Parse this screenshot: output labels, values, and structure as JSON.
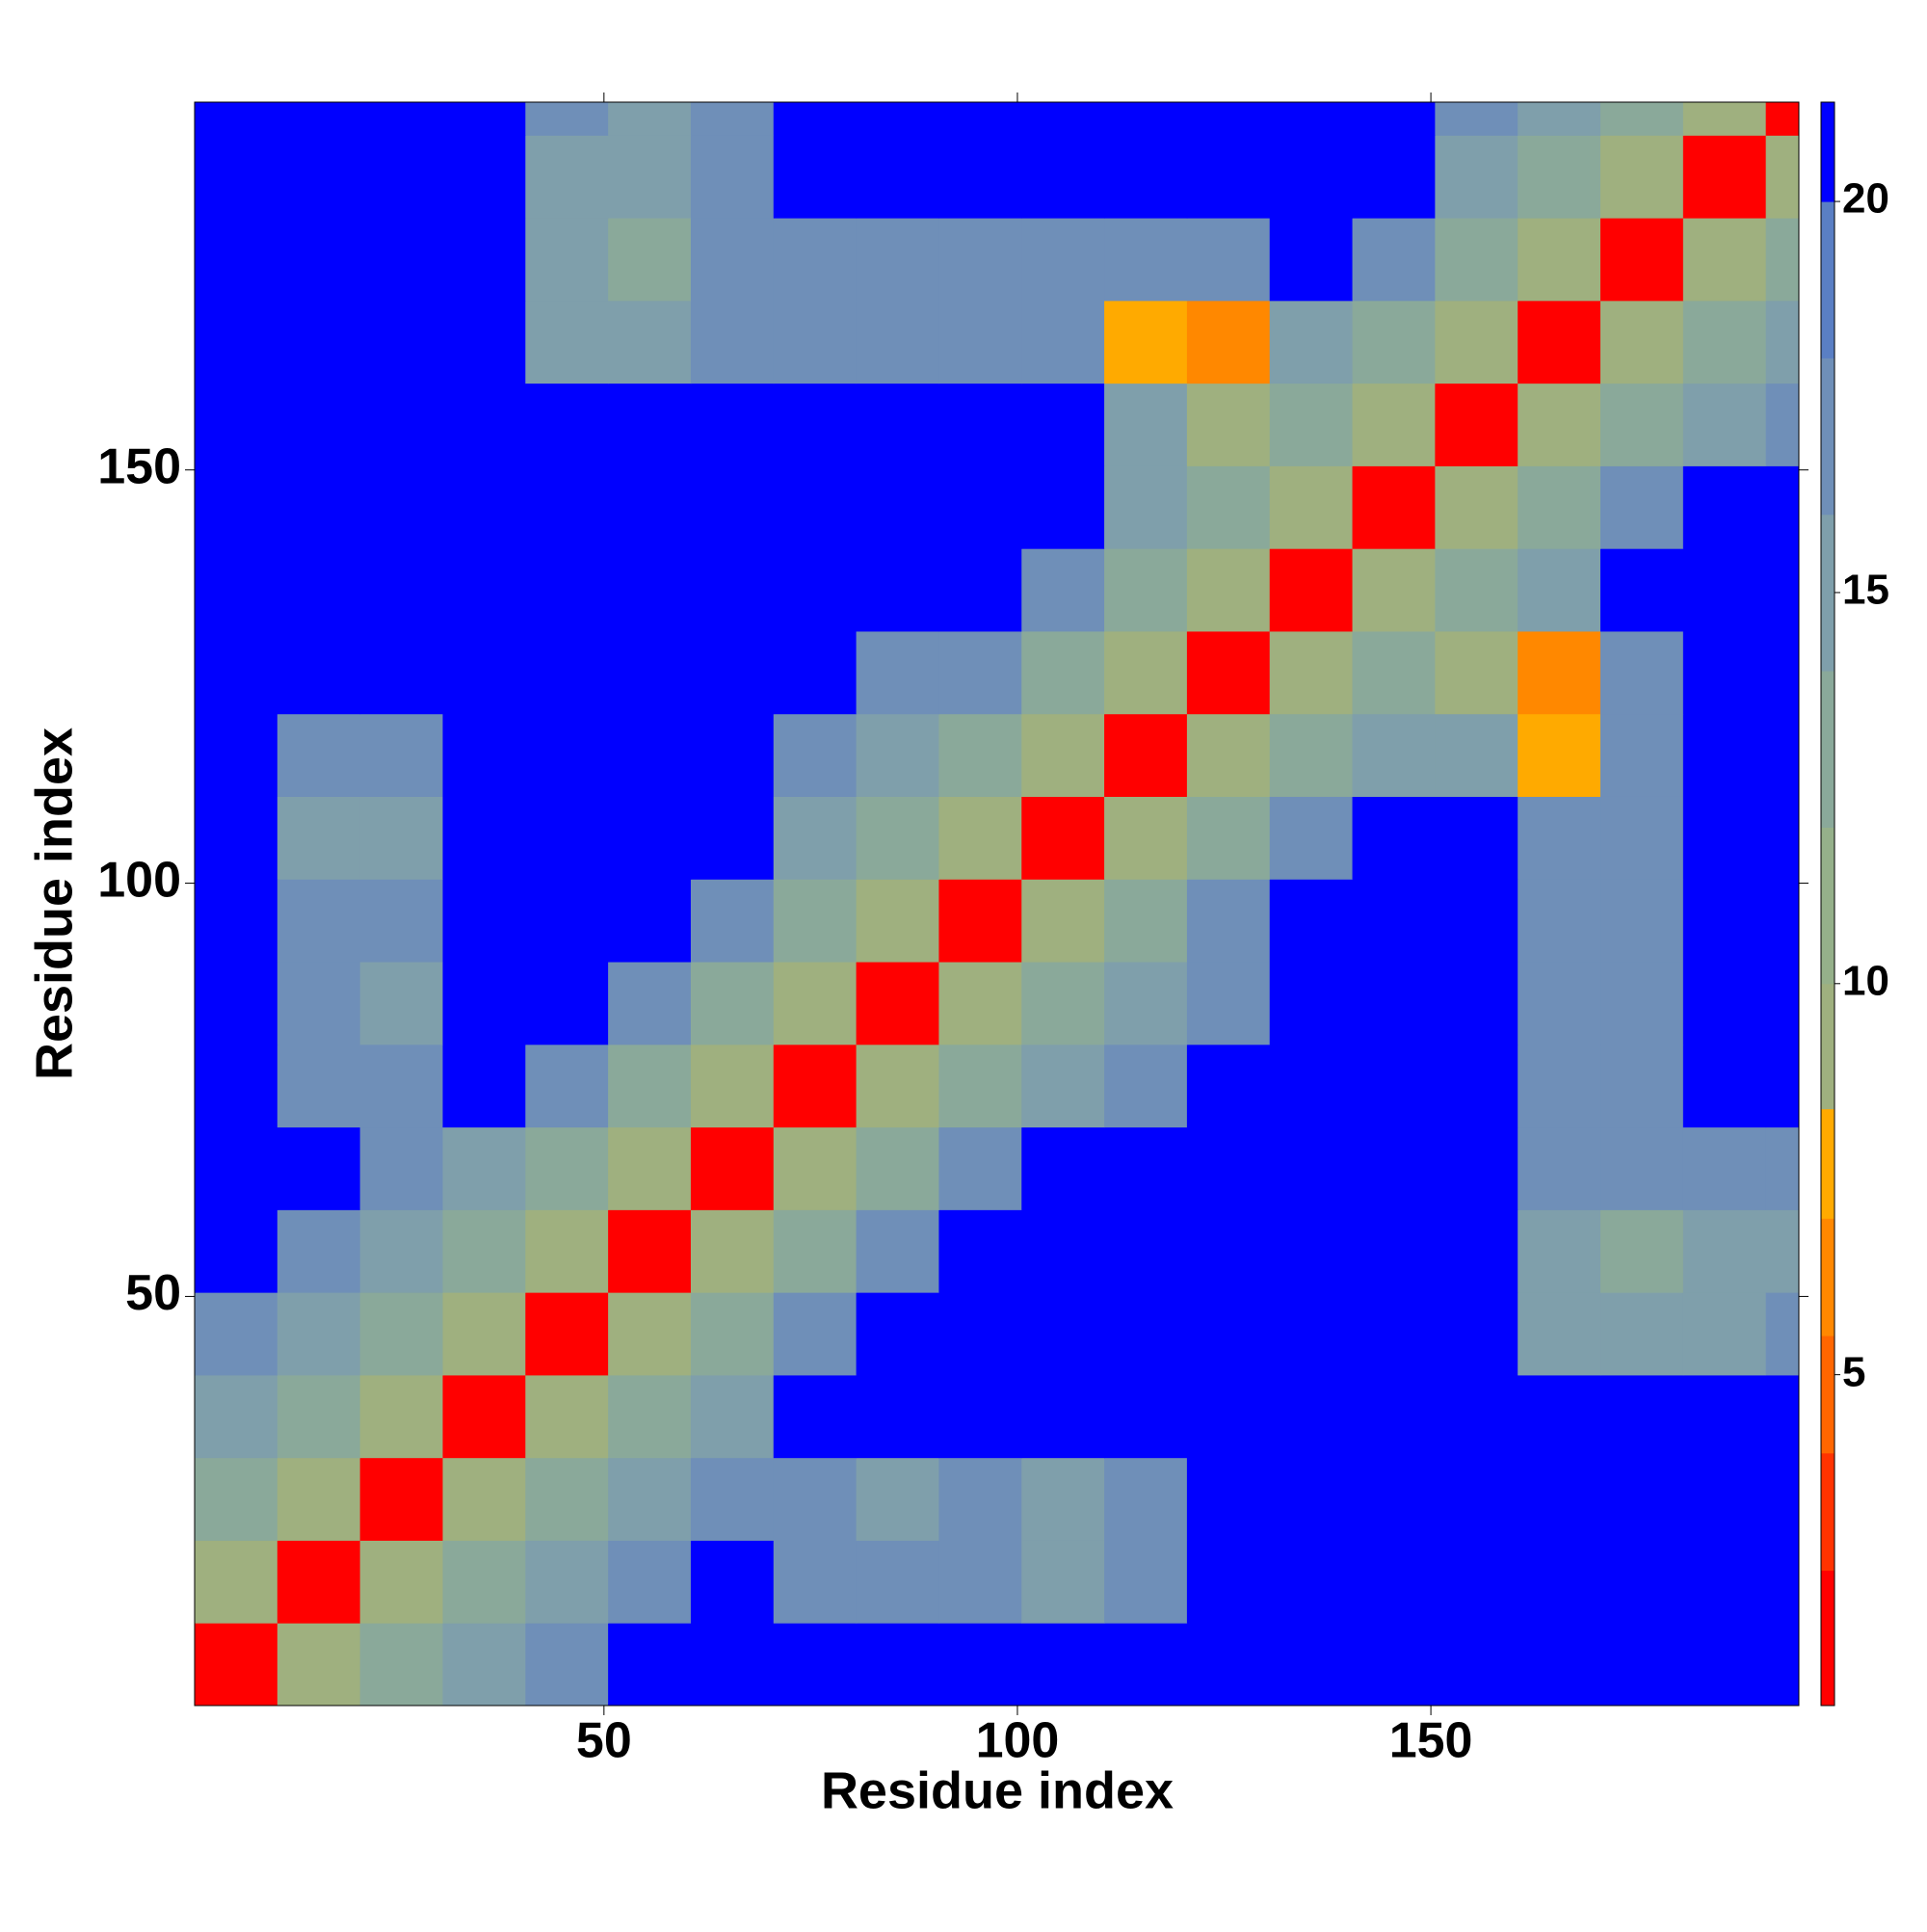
{
  "chart_data": {
    "type": "heatmap",
    "x_label": "Residue index",
    "y_label": "Residue index",
    "x_bins": [
      0.5,
      10.5,
      20.5,
      30.5,
      40.5,
      50.5,
      60.5,
      70.5,
      80.5,
      90.5,
      100.5,
      110.5,
      120.5,
      130.5,
      140.5,
      150.5,
      160.5,
      170.5,
      180.5,
      190.5,
      194.5
    ],
    "y_bins": [
      0.5,
      10.5,
      20.5,
      30.5,
      40.5,
      50.5,
      60.5,
      70.5,
      80.5,
      90.5,
      100.5,
      110.5,
      120.5,
      130.5,
      140.5,
      150.5,
      160.5,
      170.5,
      180.5,
      190.5,
      194.5
    ],
    "xlim": [
      0.5,
      194.5
    ],
    "ylim": [
      0.5,
      194.5
    ],
    "xticks": [
      50,
      100,
      150
    ],
    "yticks": [
      50,
      100,
      150
    ],
    "z": [
      [
        2,
        10,
        14,
        16,
        18,
        21,
        21,
        21,
        21,
        21,
        21,
        21,
        21,
        21,
        21,
        21,
        21,
        21,
        21,
        21
      ],
      [
        10,
        2,
        10,
        14,
        16,
        18,
        21,
        17,
        17,
        17,
        16,
        17,
        21,
        21,
        21,
        21,
        21,
        21,
        21,
        21
      ],
      [
        14,
        10,
        2,
        10,
        14,
        16,
        18,
        17,
        16,
        17,
        16,
        17,
        21,
        21,
        21,
        21,
        21,
        21,
        21,
        21
      ],
      [
        16,
        14,
        10,
        2,
        10,
        14,
        16,
        21,
        21,
        21,
        21,
        21,
        21,
        21,
        21,
        21,
        21,
        21,
        21,
        21
      ],
      [
        18,
        16,
        14,
        10,
        2,
        10,
        14,
        18,
        21,
        21,
        21,
        21,
        21,
        21,
        21,
        21,
        15,
        15,
        16,
        17
      ],
      [
        21,
        18,
        16,
        14,
        10,
        2,
        10,
        14,
        18,
        21,
        21,
        21,
        21,
        21,
        21,
        21,
        15,
        14,
        15,
        16
      ],
      [
        21,
        21,
        18,
        16,
        14,
        10,
        2,
        10,
        14,
        18,
        21,
        21,
        21,
        21,
        21,
        21,
        17,
        17,
        18,
        18
      ],
      [
        21,
        17,
        17,
        21,
        18,
        14,
        10,
        2,
        10,
        14,
        16,
        18,
        21,
        21,
        21,
        21,
        18,
        18,
        21,
        21
      ],
      [
        21,
        17,
        16,
        21,
        21,
        18,
        14,
        10,
        2,
        10,
        13,
        15,
        18,
        21,
        21,
        21,
        17,
        17,
        21,
        21
      ],
      [
        21,
        17,
        17,
        21,
        21,
        21,
        18,
        14,
        10,
        2,
        10,
        13,
        17,
        21,
        21,
        21,
        17,
        18,
        21,
        21
      ],
      [
        21,
        16,
        16,
        21,
        21,
        21,
        21,
        16,
        13,
        10,
        2,
        10,
        14,
        18,
        21,
        21,
        17,
        18,
        21,
        21
      ],
      [
        21,
        17,
        17,
        21,
        21,
        21,
        21,
        18,
        15,
        13,
        10,
        2,
        10,
        14,
        15,
        15,
        8,
        18,
        21,
        21
      ],
      [
        21,
        21,
        21,
        21,
        21,
        21,
        21,
        21,
        18,
        17,
        14,
        10,
        2,
        9,
        13,
        9,
        7,
        18,
        21,
        21
      ],
      [
        21,
        21,
        21,
        21,
        21,
        21,
        21,
        21,
        21,
        21,
        18,
        14,
        9,
        2,
        9,
        13,
        15,
        21,
        21,
        21
      ],
      [
        21,
        21,
        21,
        21,
        21,
        21,
        21,
        21,
        21,
        21,
        21,
        15,
        13,
        9,
        2,
        9,
        13,
        18,
        21,
        21
      ],
      [
        21,
        21,
        21,
        21,
        21,
        21,
        21,
        21,
        21,
        21,
        21,
        15,
        9,
        13,
        9,
        2,
        10,
        14,
        16,
        18
      ],
      [
        21,
        21,
        21,
        21,
        15,
        15,
        17,
        18,
        17,
        17,
        17,
        8,
        7,
        15,
        13,
        10,
        2,
        10,
        14,
        16
      ],
      [
        21,
        21,
        21,
        21,
        15,
        14,
        17,
        18,
        17,
        18,
        18,
        18,
        18,
        21,
        18,
        14,
        10,
        2,
        10,
        14
      ],
      [
        21,
        21,
        21,
        21,
        16,
        15,
        18,
        21,
        21,
        21,
        21,
        21,
        21,
        21,
        21,
        16,
        14,
        10,
        2,
        10
      ],
      [
        21,
        21,
        21,
        21,
        17,
        16,
        18,
        21,
        21,
        21,
        21,
        21,
        21,
        21,
        21,
        18,
        16,
        14,
        10,
        2
      ]
    ],
    "colorbar_bounds": [
      0.77,
      2.5,
      4,
      5.5,
      7,
      8.4,
      10,
      12,
      14,
      16,
      18,
      20,
      21.27
    ],
    "colorbar_colors": [
      "#ff0000",
      "#ff3300",
      "#ff6600",
      "#ff8800",
      "#ffaa00",
      "#9fb07f",
      "#95b08a",
      "#8aa99a",
      "#7f9fab",
      "#6f8fb8",
      "#5a7fc4",
      "#0000ff"
    ],
    "clim": [
      0.77,
      21.27
    ],
    "colorbar_ticks": [
      5,
      10,
      15,
      20
    ]
  }
}
